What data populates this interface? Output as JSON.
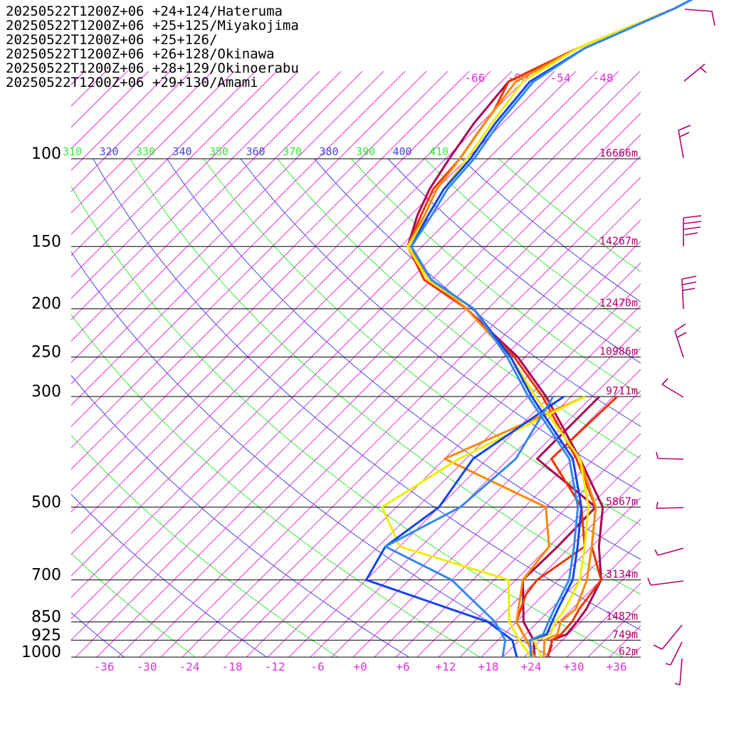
{
  "chart_data": {
    "type": "line",
    "chart_kind": "skew-T log-p sounding",
    "y_axis": {
      "scale": "log-pressure",
      "range_hPa": [
        1000,
        100
      ],
      "pressure_labels": [
        "100",
        "150",
        "200",
        "250",
        "300",
        "500",
        "700",
        "850",
        "925",
        "1000"
      ],
      "pressure_values": [
        100,
        150,
        200,
        250,
        300,
        500,
        700,
        850,
        925,
        1000
      ],
      "height_labels": [
        "16666m",
        "14267m",
        "12470m",
        "10986m",
        "9711m",
        "5867m",
        "3134m",
        "1482m",
        "749m",
        "62m"
      ]
    },
    "x_axis": {
      "range_C": [
        -40,
        40
      ],
      "tick_values": [
        -36,
        -30,
        -24,
        -18,
        -12,
        -6,
        0,
        6,
        12,
        18,
        24,
        30,
        36
      ],
      "tick_labels": [
        "-36",
        "-30",
        "-24",
        "-18",
        "-12",
        "-6",
        "+0",
        "+6",
        "+12",
        "+18",
        "+24",
        "+30",
        "+36"
      ]
    },
    "upper_isotherm_labels": [
      {
        "value": -66,
        "text": "-66"
      },
      {
        "value": -60,
        "text": "-60"
      },
      {
        "value": -54,
        "text": "-54"
      },
      {
        "value": -48,
        "text": "-48"
      }
    ],
    "theta_labels": [
      {
        "text": "310",
        "color": "#33ee33"
      },
      {
        "text": "320",
        "color": "#4444dd"
      },
      {
        "text": "330",
        "color": "#33ee33"
      },
      {
        "text": "340",
        "color": "#4444dd"
      },
      {
        "text": "350",
        "color": "#33ee33"
      },
      {
        "text": "360",
        "color": "#4444dd"
      },
      {
        "text": "370",
        "color": "#33ee33"
      },
      {
        "text": "380",
        "color": "#4444dd"
      },
      {
        "text": "390",
        "color": "#33ee33"
      },
      {
        "text": "400",
        "color": "#4444dd"
      },
      {
        "text": "410",
        "color": "#33ee33"
      }
    ],
    "grid": true,
    "colors": {
      "isobar": "#000000",
      "isotherm": "#dd33dd",
      "dry_adiabat_green": "#33ee33",
      "dry_adiabat_blue": "#4444dd",
      "pressure_label": "#000000",
      "height_label": "#b3006b",
      "wind_barb": "#b3006b"
    },
    "series": [
      {
        "name": "20250522T1200Z+06 +24+124/Hateruma",
        "color": "#aa0055",
        "temperature": [
          [
            1000,
            26.3
          ],
          [
            950,
            25.3
          ],
          [
            925,
            24.5
          ],
          [
            900,
            25.8
          ],
          [
            850,
            25.5
          ],
          [
            800,
            25.0
          ],
          [
            700,
            23.0
          ],
          [
            600,
            18.0
          ],
          [
            500,
            13.0
          ],
          [
            400,
            3.0
          ],
          [
            300,
            -10.5
          ],
          [
            250,
            -20.0
          ],
          [
            200,
            -34.0
          ],
          [
            175,
            -43.0
          ],
          [
            150,
            -51.0
          ],
          [
            130,
            -54.0
          ],
          [
            115,
            -56.0
          ],
          [
            100,
            -57.5
          ],
          [
            85,
            -59.0
          ],
          [
            70,
            -60.0
          ],
          [
            60,
            -55.0
          ],
          [
            50,
            -47.0
          ],
          [
            45,
            -44.0
          ]
        ],
        "dewpoint": [
          [
            1000,
            24.5
          ],
          [
            925,
            22.0
          ],
          [
            850,
            18.0
          ],
          [
            700,
            12.0
          ],
          [
            600,
            12.2
          ],
          [
            500,
            12.0
          ],
          [
            400,
            -3.0
          ],
          [
            300,
            -3.0
          ]
        ]
      },
      {
        "name": "20250522T1200Z+06 +25+125/Miyakojima",
        "color": "#ee3300",
        "temperature": [
          [
            1000,
            26.3
          ],
          [
            925,
            24.6
          ],
          [
            900,
            25.0
          ],
          [
            850,
            24.8
          ],
          [
            800,
            24.0
          ],
          [
            700,
            23.0
          ],
          [
            600,
            17.0
          ],
          [
            500,
            12.0
          ],
          [
            400,
            2.5
          ],
          [
            300,
            -11.0
          ],
          [
            250,
            -20.5
          ],
          [
            200,
            -34.0
          ],
          [
            175,
            -44.0
          ],
          [
            150,
            -51.0
          ],
          [
            130,
            -53.5
          ],
          [
            115,
            -55.5
          ],
          [
            100,
            -56.0
          ],
          [
            90,
            -57.0
          ],
          [
            80,
            -58.0
          ],
          [
            70,
            -60.0
          ],
          [
            60,
            -55.0
          ],
          [
            50,
            -47.0
          ],
          [
            45,
            -44.0
          ]
        ],
        "dewpoint": [
          [
            1000,
            24.5
          ],
          [
            925,
            21.0
          ],
          [
            850,
            17.0
          ],
          [
            750,
            14.5
          ],
          [
            700,
            14.0
          ],
          [
            600,
            16.0
          ],
          [
            500,
            10.0
          ],
          [
            400,
            -1.0
          ],
          [
            300,
            -0.5
          ]
        ]
      },
      {
        "name": "20250522T1200Z+06 +25+126/",
        "color": "#ff8800",
        "temperature": [
          [
            1000,
            25.8
          ],
          [
            925,
            23.5
          ],
          [
            900,
            24.5
          ],
          [
            850,
            23.2
          ],
          [
            800,
            23.5
          ],
          [
            700,
            21.0
          ],
          [
            600,
            17.0
          ],
          [
            500,
            12.0
          ],
          [
            400,
            3.0
          ],
          [
            300,
            -12.0
          ],
          [
            250,
            -21.0
          ],
          [
            200,
            -34.0
          ],
          [
            175,
            -43.0
          ],
          [
            150,
            -51.0
          ],
          [
            130,
            -53.0
          ],
          [
            115,
            -55.0
          ],
          [
            100,
            -56.0
          ],
          [
            85,
            -57.5
          ],
          [
            70,
            -59.0
          ],
          [
            60,
            -55.0
          ],
          [
            50,
            -47.0
          ],
          [
            45,
            -44.0
          ]
        ],
        "dewpoint": [
          [
            1000,
            24.5
          ],
          [
            925,
            21.0
          ],
          [
            850,
            17.0
          ],
          [
            700,
            12.0
          ],
          [
            600,
            11.0
          ],
          [
            500,
            5.0
          ],
          [
            400,
            -16.0
          ],
          [
            300,
            -5.0
          ]
        ]
      },
      {
        "name": "20250522T1200Z+06 +26+128/Okinawa",
        "color": "#eeee00",
        "temperature": [
          [
            1000,
            25.5
          ],
          [
            925,
            22.0
          ],
          [
            900,
            23.5
          ],
          [
            850,
            22.5
          ],
          [
            800,
            22.0
          ],
          [
            700,
            20.0
          ],
          [
            600,
            16.0
          ],
          [
            500,
            11.0
          ],
          [
            400,
            3.0
          ],
          [
            300,
            -12.0
          ],
          [
            250,
            -21.0
          ],
          [
            200,
            -33.0
          ],
          [
            175,
            -43.5
          ],
          [
            150,
            -51.0
          ],
          [
            130,
            -52.5
          ],
          [
            115,
            -54.0
          ],
          [
            100,
            -55.0
          ],
          [
            85,
            -56.5
          ],
          [
            70,
            -58.0
          ],
          [
            60,
            -55.0
          ],
          [
            50,
            -47.0
          ],
          [
            45,
            -44.0
          ]
        ],
        "dewpoint": [
          [
            1000,
            24.0
          ],
          [
            925,
            20.0
          ],
          [
            850,
            16.0
          ],
          [
            700,
            10.0
          ],
          [
            600,
            -10.0
          ],
          [
            500,
            -18.0
          ],
          [
            400,
            -14.0
          ],
          [
            300,
            -5.0
          ]
        ]
      },
      {
        "name": "20250522T1200Z+06 +28+129/Okinoerabu",
        "color": "#1144ee",
        "temperature": [
          [
            1000,
            24.0
          ],
          [
            925,
            21.5
          ],
          [
            900,
            23.0
          ],
          [
            850,
            22.0
          ],
          [
            800,
            21.0
          ],
          [
            700,
            19.0
          ],
          [
            600,
            15.0
          ],
          [
            500,
            10.0
          ],
          [
            400,
            2.0
          ],
          [
            300,
            -12.5
          ],
          [
            250,
            -21.0
          ],
          [
            200,
            -33.0
          ],
          [
            175,
            -43.0
          ],
          [
            150,
            -50.5
          ],
          [
            130,
            -52.5
          ],
          [
            115,
            -54.0
          ],
          [
            100,
            -54.5
          ],
          [
            85,
            -56.0
          ],
          [
            70,
            -57.0
          ],
          [
            60,
            -54.0
          ],
          [
            50,
            -47.0
          ],
          [
            45,
            -44.0
          ]
        ],
        "dewpoint": [
          [
            1000,
            22.0
          ],
          [
            925,
            19.0
          ],
          [
            850,
            13.0
          ],
          [
            700,
            -10.0
          ],
          [
            600,
            -12.0
          ],
          [
            500,
            -10.0
          ],
          [
            400,
            -12.0
          ],
          [
            300,
            -8.0
          ]
        ]
      },
      {
        "name": "20250522T1200Z+06 +29+130/Amami",
        "color": "#3388ee",
        "temperature": [
          [
            1000,
            24.0
          ],
          [
            925,
            21.5
          ],
          [
            900,
            22.5
          ],
          [
            850,
            21.5
          ],
          [
            800,
            20.5
          ],
          [
            700,
            18.5
          ],
          [
            600,
            14.5
          ],
          [
            500,
            9.5
          ],
          [
            400,
            1.5
          ],
          [
            300,
            -13.0
          ],
          [
            250,
            -21.5
          ],
          [
            200,
            -33.0
          ],
          [
            175,
            -43.0
          ],
          [
            150,
            -50.5
          ],
          [
            130,
            -52.0
          ],
          [
            115,
            -53.5
          ],
          [
            100,
            -54.0
          ],
          [
            85,
            -55.5
          ],
          [
            70,
            -56.5
          ],
          [
            60,
            -54.0
          ],
          [
            50,
            -47.0
          ],
          [
            45,
            -44.0
          ]
        ],
        "dewpoint": [
          [
            1000,
            20.0
          ],
          [
            925,
            18.0
          ],
          [
            850,
            14.0
          ],
          [
            700,
            2.0
          ],
          [
            600,
            -12.0
          ],
          [
            500,
            -7.0
          ],
          [
            400,
            -6.0
          ],
          [
            300,
            -9.5
          ]
        ]
      }
    ]
  }
}
